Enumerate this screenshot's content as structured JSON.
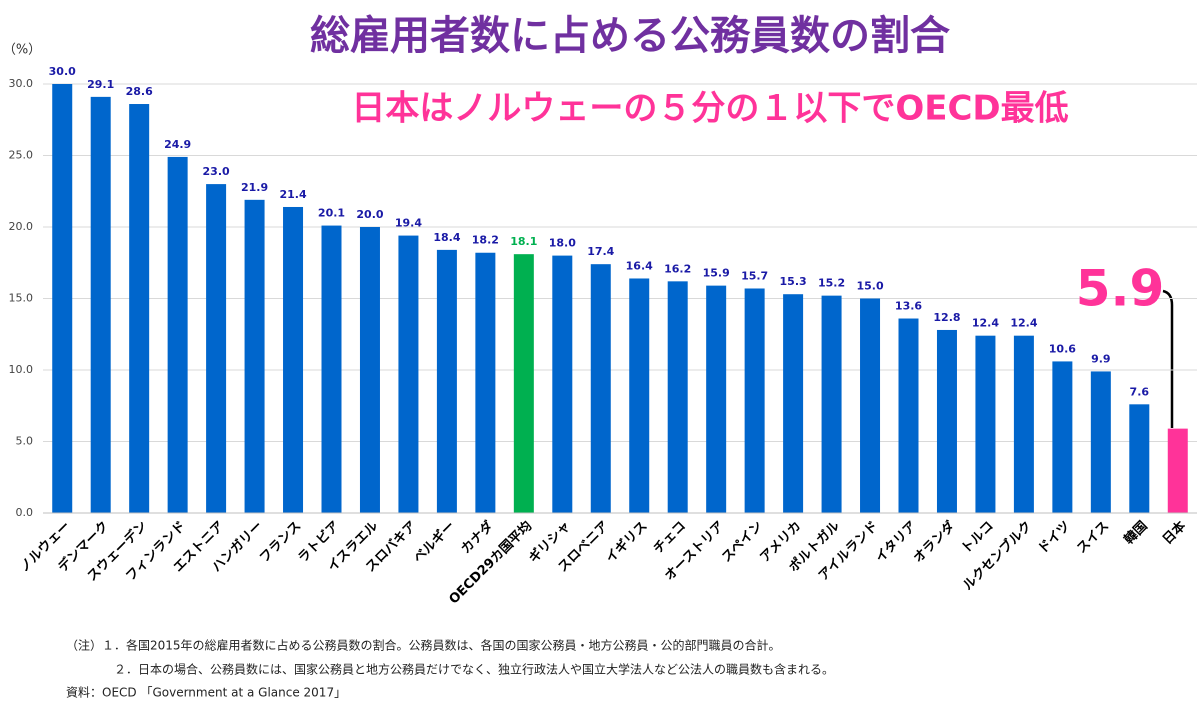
{
  "chart_data": {
    "type": "bar",
    "title": "総雇用者数に占める公務員数の割合",
    "subtitle": "日本はノルウェーの５分の１以下でOECD最低",
    "y_label": "（%）",
    "categories": [
      "ノルウェー",
      "デンマーク",
      "スウェーデン",
      "フィンランド",
      "エストニア",
      "ハンガリー",
      "フランス",
      "ラトビア",
      "イスラエル",
      "スロバキア",
      "ベルギー",
      "カナダ",
      "OECD29カ国平均",
      "ギリシャ",
      "スロベニア",
      "イギリス",
      "チェコ",
      "オーストリア",
      "スペイン",
      "アメリカ",
      "ポルトガル",
      "アイルランド",
      "イタリア",
      "オランダ",
      "トルコ",
      "ルクセンブルク",
      "ドイツ",
      "スイス",
      "韓国",
      "日本"
    ],
    "values": [
      30.0,
      29.1,
      28.6,
      24.9,
      23.0,
      21.9,
      21.4,
      20.1,
      20.0,
      19.4,
      18.4,
      18.2,
      18.1,
      18.0,
      17.4,
      16.4,
      16.2,
      15.9,
      15.7,
      15.3,
      15.2,
      15.0,
      13.6,
      12.8,
      12.4,
      12.4,
      10.6,
      9.9,
      7.6,
      5.9
    ],
    "value_labels": [
      "30.0",
      "29.1",
      "28.6",
      "24.9",
      "23.0",
      "21.9",
      "21.4",
      "20.1",
      "20.0",
      "19.4",
      "18.4",
      "18.2",
      "18.1",
      "18.0",
      "17.4",
      "16.4",
      "16.2",
      "15.9",
      "15.7",
      "15.3",
      "15.2",
      "15.0",
      "13.6",
      "12.8",
      "12.4",
      "12.4",
      "10.6",
      "9.9",
      "7.6",
      "5.9"
    ],
    "colors": [
      "#0066cc",
      "#0066cc",
      "#0066cc",
      "#0066cc",
      "#0066cc",
      "#0066cc",
      "#0066cc",
      "#0066cc",
      "#0066cc",
      "#0066cc",
      "#0066cc",
      "#0066cc",
      "#00b050",
      "#0066cc",
      "#0066cc",
      "#0066cc",
      "#0066cc",
      "#0066cc",
      "#0066cc",
      "#0066cc",
      "#0066cc",
      "#0066cc",
      "#0066cc",
      "#0066cc",
      "#0066cc",
      "#0066cc",
      "#0066cc",
      "#0066cc",
      "#0066cc",
      "#ff3399"
    ],
    "label_color": "#1a1aa6",
    "ylim": [
      0,
      30
    ],
    "yticks": [
      {
        "value": 0,
        "label": "0.0"
      },
      {
        "value": 5,
        "label": "5.0"
      },
      {
        "value": 10,
        "label": "10.0"
      },
      {
        "value": 15,
        "label": "15.0"
      },
      {
        "value": 20,
        "label": "20.0"
      },
      {
        "value": 25,
        "label": "25.0"
      },
      {
        "value": 30,
        "label": "30.0"
      }
    ],
    "grid": true,
    "notes": [
      "（注）１．各国2015年の総雇用者数に占める公務員数の割合。公務員数は、各国の国家公務員・地方公務員・公的部門職員の合計。",
      "２．日本の場合、公務員数には、国家公務員と地方公務員だけでなく、独立行政法人や国立大学法人など公法人の職員数も含まれる。",
      "資料：OECD 「Government at a Glance 2017」"
    ]
  }
}
